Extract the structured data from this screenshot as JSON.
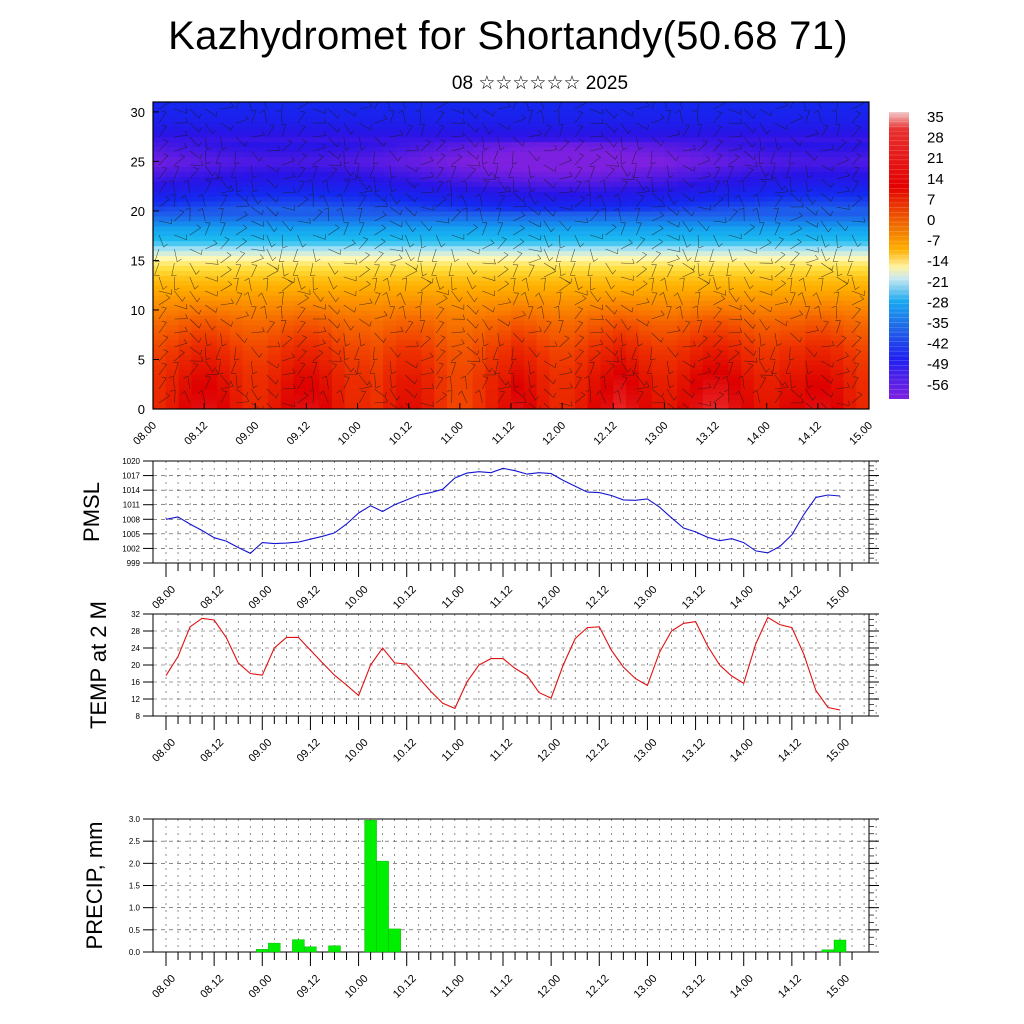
{
  "header": {
    "title": "Kazhydromet for Shortandy(50.68 71)",
    "subtitle": "08 ☆☆☆☆☆☆ 2025"
  },
  "time_axis": {
    "labels": [
      "08.00",
      "08.12",
      "09.00",
      "09.12",
      "10.00",
      "10.12",
      "11.00",
      "11.12",
      "12.00",
      "12.12",
      "13.00",
      "13.12",
      "14.00",
      "14.12",
      "15.00"
    ]
  },
  "chart_data": [
    {
      "type": "heatmap",
      "title": "",
      "ylim": [
        0,
        31
      ],
      "y_ticks": [
        "0",
        "5",
        "10",
        "15",
        "20",
        "25",
        "30"
      ],
      "colorbar": {
        "labels": [
          "35",
          "28",
          "21",
          "14",
          "7",
          "0",
          "-7",
          "-14",
          "-21",
          "-28",
          "-35",
          "-42",
          "-49",
          "-56"
        ],
        "min": -63,
        "max": 38
      },
      "temperature_profile": {
        "levels": [
          0,
          3,
          6,
          9,
          11,
          13,
          15,
          17,
          19,
          21,
          23,
          25,
          27,
          29,
          31
        ],
        "values": [
          22,
          20,
          16,
          10,
          4,
          -2,
          -12,
          -28,
          -40,
          -50,
          -57,
          -62,
          -58,
          -53,
          -50
        ]
      },
      "overlay": "wind barbs"
    },
    {
      "type": "line",
      "ylabel": "PMSL",
      "ylim": [
        999,
        1020
      ],
      "y_ticks": [
        "999",
        "1002",
        "1005",
        "1008",
        "1011",
        "1014",
        "1017",
        "1020"
      ],
      "line_color": "#1414d0",
      "x": [
        0,
        3,
        6,
        9,
        12,
        15,
        18,
        21,
        24,
        27,
        30,
        33,
        36,
        39,
        42,
        45,
        48,
        51,
        54,
        57,
        60,
        63,
        66,
        69,
        72,
        75,
        78,
        81,
        84,
        87,
        90,
        93,
        96,
        99,
        102,
        105,
        108,
        111,
        114,
        117,
        120,
        123,
        126,
        129,
        132,
        135,
        138,
        141,
        144,
        147,
        150,
        153,
        156,
        159,
        162,
        165,
        168
      ],
      "values": [
        1008,
        1008.5,
        1007,
        1005.7,
        1004.2,
        1003.5,
        1002.2,
        1001,
        1003.2,
        1003,
        1003.1,
        1003.3,
        1003.9,
        1004.5,
        1005.2,
        1007,
        1009.3,
        1010.8,
        1009.6,
        1011,
        1012,
        1013,
        1013.5,
        1014.2,
        1016.5,
        1017.5,
        1017.8,
        1017.6,
        1018.5,
        1018,
        1017.3,
        1017.6,
        1017.4,
        1016,
        1014.8,
        1013.6,
        1013.5,
        1012.9,
        1012,
        1011.9,
        1012.2,
        1010.5,
        1008.3,
        1006.2,
        1005.4,
        1004.3,
        1003.6,
        1004,
        1003.2,
        1001.5,
        1001.1,
        1002.4,
        1004.8,
        1009,
        1012.5,
        1013,
        1012.8
      ]
    },
    {
      "type": "line",
      "ylabel": "TEMP at 2 M",
      "ylim": [
        8,
        32
      ],
      "y_ticks": [
        "8",
        "12",
        "16",
        "20",
        "24",
        "28",
        "32"
      ],
      "line_color": "#e01010",
      "x": [
        0,
        3,
        6,
        9,
        12,
        15,
        18,
        21,
        24,
        27,
        30,
        33,
        36,
        39,
        42,
        45,
        48,
        51,
        54,
        57,
        60,
        63,
        66,
        69,
        72,
        75,
        78,
        81,
        84,
        87,
        90,
        93,
        96,
        99,
        102,
        105,
        108,
        111,
        114,
        117,
        120,
        123,
        126,
        129,
        132,
        135,
        138,
        141,
        144,
        147,
        150,
        153,
        156,
        159,
        162,
        165,
        168
      ],
      "values": [
        17.5,
        22,
        29,
        31,
        30.6,
        26.5,
        20.5,
        18,
        17.6,
        24,
        26.5,
        26.5,
        23.5,
        20.5,
        17.6,
        15.3,
        12.8,
        20,
        24,
        20.5,
        20.2,
        17,
        13.8,
        11,
        9.8,
        16,
        20,
        21.5,
        21.5,
        19.2,
        17.5,
        13.5,
        12.2,
        20,
        26.2,
        28.8,
        29,
        23.5,
        19.5,
        16.8,
        15.2,
        23,
        28,
        29.8,
        30.2,
        24.5,
        20,
        17.4,
        15.7,
        25,
        31.2,
        29.5,
        28.8,
        22.5,
        14,
        10,
        9.4
      ]
    },
    {
      "type": "bar",
      "ylabel": "PRECIP, mm",
      "ylim": [
        0,
        3
      ],
      "y_ticks": [
        "0.0",
        "0.5",
        "1.0",
        "1.5",
        "2.0",
        "2.5",
        "3.0"
      ],
      "bar_color": "#00ee00",
      "bars": [
        {
          "x": 24,
          "value": 0.06
        },
        {
          "x": 27,
          "value": 0.2
        },
        {
          "x": 33,
          "value": 0.28
        },
        {
          "x": 36,
          "value": 0.12
        },
        {
          "x": 42,
          "value": 0.14
        },
        {
          "x": 51,
          "value": 2.97
        },
        {
          "x": 54,
          "value": 2.05
        },
        {
          "x": 57,
          "value": 0.52
        },
        {
          "x": 165,
          "value": 0.05
        },
        {
          "x": 168,
          "value": 0.27
        }
      ]
    }
  ]
}
